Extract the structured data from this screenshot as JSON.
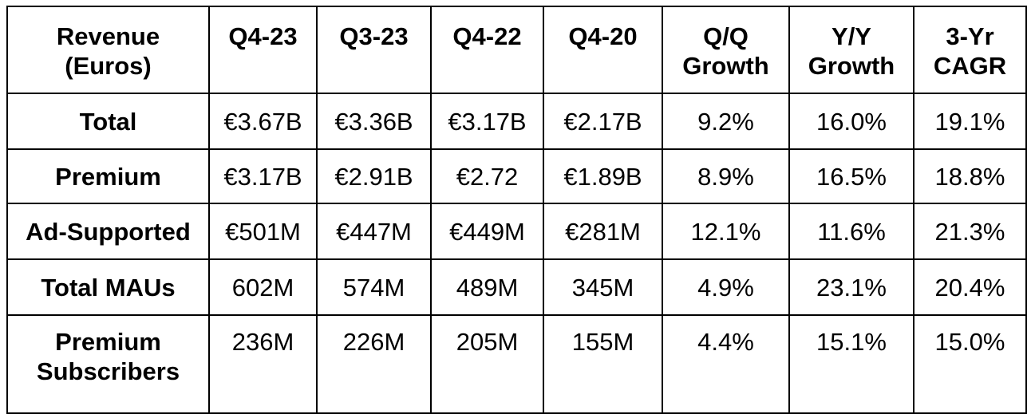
{
  "table": {
    "headers": [
      {
        "line1": "Revenue",
        "line2": "(Euros)"
      },
      {
        "line1": "Q4-23",
        "line2": ""
      },
      {
        "line1": "Q3-23",
        "line2": ""
      },
      {
        "line1": "Q4-22",
        "line2": ""
      },
      {
        "line1": "Q4-20",
        "line2": ""
      },
      {
        "line1": "Q/Q",
        "line2": "Growth"
      },
      {
        "line1": "Y/Y",
        "line2": "Growth"
      },
      {
        "line1": "3-Yr",
        "line2": "CAGR"
      }
    ],
    "rows": [
      {
        "label1": "Total",
        "label2": "",
        "cells": [
          "€3.67B",
          "€3.36B",
          "€3.17B",
          "€2.17B",
          "9.2%",
          "16.0%",
          "19.1%"
        ]
      },
      {
        "label1": "Premium",
        "label2": "",
        "cells": [
          "€3.17B",
          "€2.91B",
          "€2.72",
          "€1.89B",
          "8.9%",
          "16.5%",
          "18.8%"
        ]
      },
      {
        "label1": "Ad-Supported",
        "label2": "",
        "cells": [
          "€501M",
          "€447M",
          "€449M",
          "€281M",
          "12.1%",
          "11.6%",
          "21.3%"
        ]
      },
      {
        "label1": "Total MAUs",
        "label2": "",
        "cells": [
          "602M",
          "574M",
          "489M",
          "345M",
          "4.9%",
          "23.1%",
          "20.4%"
        ]
      },
      {
        "label1": "Premium",
        "label2": "Subscribers",
        "cells": [
          "236M",
          "226M",
          "205M",
          "155M",
          "4.4%",
          "15.1%",
          "15.0%"
        ]
      }
    ]
  }
}
